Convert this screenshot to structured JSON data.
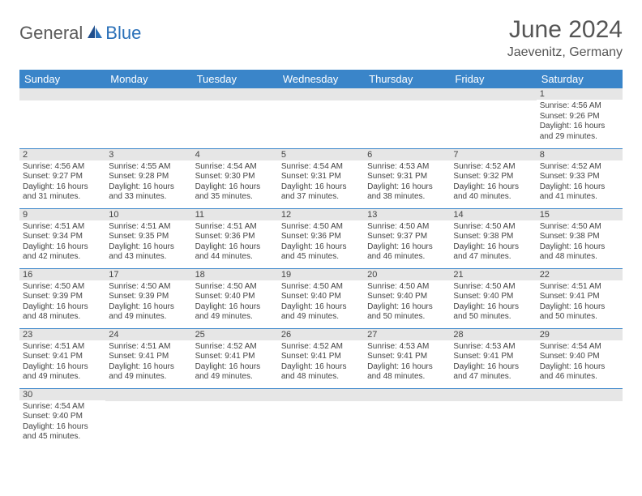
{
  "logo": {
    "part1": "General",
    "part2": "Blue"
  },
  "title": "June 2024",
  "location": "Jaevenitz, Germany",
  "colors": {
    "header_bg": "#3a85c9",
    "header_text": "#ffffff",
    "daynum_bg": "#e6e6e6",
    "border": "#3a85c9",
    "logo_accent": "#2a70b8",
    "text": "#444444"
  },
  "weekdays": [
    "Sunday",
    "Monday",
    "Tuesday",
    "Wednesday",
    "Thursday",
    "Friday",
    "Saturday"
  ],
  "weeks": [
    [
      null,
      null,
      null,
      null,
      null,
      null,
      {
        "n": "1",
        "sunrise": "Sunrise: 4:56 AM",
        "sunset": "Sunset: 9:26 PM",
        "daylight": "Daylight: 16 hours and 29 minutes."
      }
    ],
    [
      {
        "n": "2",
        "sunrise": "Sunrise: 4:56 AM",
        "sunset": "Sunset: 9:27 PM",
        "daylight": "Daylight: 16 hours and 31 minutes."
      },
      {
        "n": "3",
        "sunrise": "Sunrise: 4:55 AM",
        "sunset": "Sunset: 9:28 PM",
        "daylight": "Daylight: 16 hours and 33 minutes."
      },
      {
        "n": "4",
        "sunrise": "Sunrise: 4:54 AM",
        "sunset": "Sunset: 9:30 PM",
        "daylight": "Daylight: 16 hours and 35 minutes."
      },
      {
        "n": "5",
        "sunrise": "Sunrise: 4:54 AM",
        "sunset": "Sunset: 9:31 PM",
        "daylight": "Daylight: 16 hours and 37 minutes."
      },
      {
        "n": "6",
        "sunrise": "Sunrise: 4:53 AM",
        "sunset": "Sunset: 9:31 PM",
        "daylight": "Daylight: 16 hours and 38 minutes."
      },
      {
        "n": "7",
        "sunrise": "Sunrise: 4:52 AM",
        "sunset": "Sunset: 9:32 PM",
        "daylight": "Daylight: 16 hours and 40 minutes."
      },
      {
        "n": "8",
        "sunrise": "Sunrise: 4:52 AM",
        "sunset": "Sunset: 9:33 PM",
        "daylight": "Daylight: 16 hours and 41 minutes."
      }
    ],
    [
      {
        "n": "9",
        "sunrise": "Sunrise: 4:51 AM",
        "sunset": "Sunset: 9:34 PM",
        "daylight": "Daylight: 16 hours and 42 minutes."
      },
      {
        "n": "10",
        "sunrise": "Sunrise: 4:51 AM",
        "sunset": "Sunset: 9:35 PM",
        "daylight": "Daylight: 16 hours and 43 minutes."
      },
      {
        "n": "11",
        "sunrise": "Sunrise: 4:51 AM",
        "sunset": "Sunset: 9:36 PM",
        "daylight": "Daylight: 16 hours and 44 minutes."
      },
      {
        "n": "12",
        "sunrise": "Sunrise: 4:50 AM",
        "sunset": "Sunset: 9:36 PM",
        "daylight": "Daylight: 16 hours and 45 minutes."
      },
      {
        "n": "13",
        "sunrise": "Sunrise: 4:50 AM",
        "sunset": "Sunset: 9:37 PM",
        "daylight": "Daylight: 16 hours and 46 minutes."
      },
      {
        "n": "14",
        "sunrise": "Sunrise: 4:50 AM",
        "sunset": "Sunset: 9:38 PM",
        "daylight": "Daylight: 16 hours and 47 minutes."
      },
      {
        "n": "15",
        "sunrise": "Sunrise: 4:50 AM",
        "sunset": "Sunset: 9:38 PM",
        "daylight": "Daylight: 16 hours and 48 minutes."
      }
    ],
    [
      {
        "n": "16",
        "sunrise": "Sunrise: 4:50 AM",
        "sunset": "Sunset: 9:39 PM",
        "daylight": "Daylight: 16 hours and 48 minutes."
      },
      {
        "n": "17",
        "sunrise": "Sunrise: 4:50 AM",
        "sunset": "Sunset: 9:39 PM",
        "daylight": "Daylight: 16 hours and 49 minutes."
      },
      {
        "n": "18",
        "sunrise": "Sunrise: 4:50 AM",
        "sunset": "Sunset: 9:40 PM",
        "daylight": "Daylight: 16 hours and 49 minutes."
      },
      {
        "n": "19",
        "sunrise": "Sunrise: 4:50 AM",
        "sunset": "Sunset: 9:40 PM",
        "daylight": "Daylight: 16 hours and 49 minutes."
      },
      {
        "n": "20",
        "sunrise": "Sunrise: 4:50 AM",
        "sunset": "Sunset: 9:40 PM",
        "daylight": "Daylight: 16 hours and 50 minutes."
      },
      {
        "n": "21",
        "sunrise": "Sunrise: 4:50 AM",
        "sunset": "Sunset: 9:40 PM",
        "daylight": "Daylight: 16 hours and 50 minutes."
      },
      {
        "n": "22",
        "sunrise": "Sunrise: 4:51 AM",
        "sunset": "Sunset: 9:41 PM",
        "daylight": "Daylight: 16 hours and 50 minutes."
      }
    ],
    [
      {
        "n": "23",
        "sunrise": "Sunrise: 4:51 AM",
        "sunset": "Sunset: 9:41 PM",
        "daylight": "Daylight: 16 hours and 49 minutes."
      },
      {
        "n": "24",
        "sunrise": "Sunrise: 4:51 AM",
        "sunset": "Sunset: 9:41 PM",
        "daylight": "Daylight: 16 hours and 49 minutes."
      },
      {
        "n": "25",
        "sunrise": "Sunrise: 4:52 AM",
        "sunset": "Sunset: 9:41 PM",
        "daylight": "Daylight: 16 hours and 49 minutes."
      },
      {
        "n": "26",
        "sunrise": "Sunrise: 4:52 AM",
        "sunset": "Sunset: 9:41 PM",
        "daylight": "Daylight: 16 hours and 48 minutes."
      },
      {
        "n": "27",
        "sunrise": "Sunrise: 4:53 AM",
        "sunset": "Sunset: 9:41 PM",
        "daylight": "Daylight: 16 hours and 48 minutes."
      },
      {
        "n": "28",
        "sunrise": "Sunrise: 4:53 AM",
        "sunset": "Sunset: 9:41 PM",
        "daylight": "Daylight: 16 hours and 47 minutes."
      },
      {
        "n": "29",
        "sunrise": "Sunrise: 4:54 AM",
        "sunset": "Sunset: 9:40 PM",
        "daylight": "Daylight: 16 hours and 46 minutes."
      }
    ],
    [
      {
        "n": "30",
        "sunrise": "Sunrise: 4:54 AM",
        "sunset": "Sunset: 9:40 PM",
        "daylight": "Daylight: 16 hours and 45 minutes."
      },
      null,
      null,
      null,
      null,
      null,
      null
    ]
  ]
}
